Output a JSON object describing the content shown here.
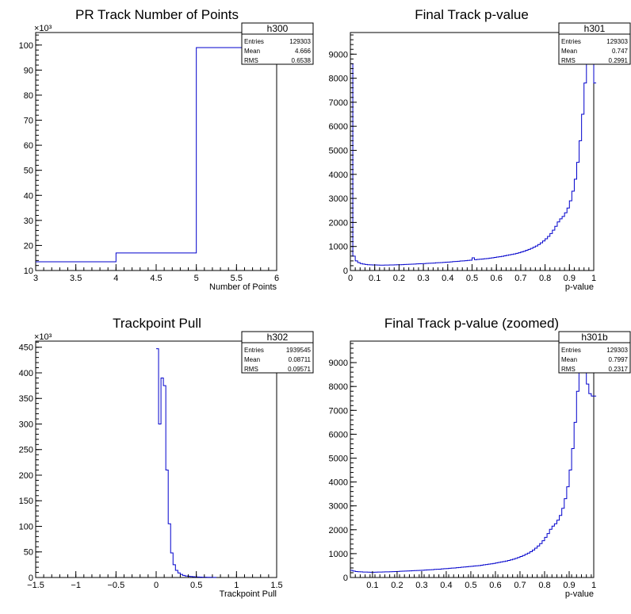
{
  "chart_data": [
    {
      "type": "histogram",
      "title": "PR Track Number of Points",
      "xlabel": "Number of Points",
      "ylabel": "",
      "xlim": [
        3,
        6
      ],
      "ylim": [
        10,
        105
      ],
      "y_multiplier_label": "×10³",
      "xticks": [
        "3",
        "3.5",
        "4",
        "4.5",
        "5",
        "5.5",
        "6"
      ],
      "yticks": [
        "10",
        "20",
        "30",
        "40",
        "50",
        "60",
        "70",
        "80",
        "90",
        "100"
      ],
      "bin_edges": [
        3,
        4,
        5,
        6
      ],
      "values": [
        13.5,
        17,
        99
      ],
      "stats": {
        "name": "h300",
        "entries_label": "Entries",
        "entries": "129303",
        "mean_label": "Mean",
        "mean": "4.666",
        "rms_label": "RMS",
        "rms": "0.6538"
      },
      "line_color": "#0000cc",
      "grid": false
    },
    {
      "type": "histogram",
      "title": "Final Track p-value",
      "xlabel": "p-value",
      "ylabel": "",
      "xlim": [
        0,
        1
      ],
      "ylim": [
        0,
        9900
      ],
      "xticks": [
        "0",
        "0.1",
        "0.2",
        "0.3",
        "0.4",
        "0.5",
        "0.6",
        "0.7",
        "0.8",
        "0.9",
        "1"
      ],
      "yticks": [
        "0",
        "1000",
        "2000",
        "3000",
        "4000",
        "5000",
        "6000",
        "7000",
        "8000",
        "9000"
      ],
      "bin_width": 0.01,
      "values": [
        8600,
        600,
        400,
        330,
        290,
        270,
        250,
        240,
        235,
        230,
        230,
        225,
        222,
        222,
        225,
        228,
        230,
        232,
        235,
        238,
        240,
        245,
        250,
        255,
        260,
        265,
        270,
        275,
        280,
        285,
        290,
        295,
        300,
        305,
        310,
        320,
        325,
        330,
        340,
        345,
        350,
        360,
        370,
        375,
        385,
        395,
        400,
        410,
        420,
        430,
        530,
        450,
        460,
        470,
        480,
        490,
        500,
        515,
        530,
        545,
        560,
        575,
        590,
        610,
        630,
        650,
        670,
        690,
        715,
        740,
        770,
        800,
        840,
        880,
        920,
        970,
        1020,
        1080,
        1150,
        1230,
        1320,
        1420,
        1540,
        1680,
        1840,
        2020,
        2150,
        2250,
        2400,
        2600,
        2900,
        3300,
        3800,
        4500,
        5400,
        6500,
        7800,
        8900,
        9300,
        9100,
        7800
      ],
      "stats": {
        "name": "h301",
        "entries_label": "Entries",
        "entries": "129303",
        "mean_label": "Mean",
        "mean": "0.747",
        "rms_label": "RMS",
        "rms": "0.2991"
      },
      "line_color": "#0000cc",
      "grid": false
    },
    {
      "type": "histogram",
      "title": "Trackpoint Pull",
      "xlabel": "Trackpoint Pull",
      "ylabel": "",
      "xlim": [
        -1.5,
        1.5
      ],
      "ylim": [
        0,
        462
      ],
      "y_multiplier_label": "×10³",
      "xticks": [
        "−1.5",
        "−1",
        "−0.5",
        "0",
        "0.5",
        "1",
        "1.5"
      ],
      "yticks": [
        "0",
        "50",
        "100",
        "150",
        "200",
        "250",
        "300",
        "350",
        "400",
        "450"
      ],
      "bin_edges": [
        0,
        0.03,
        0.06,
        0.09,
        0.12,
        0.15,
        0.18,
        0.21,
        0.24,
        0.27,
        0.3,
        0.33,
        0.36,
        0.39,
        0.42,
        0.45,
        0.48,
        0.51,
        0.54,
        0.57,
        0.6,
        0.63,
        0.66,
        0.69,
        0.72,
        0.75
      ],
      "values": [
        447,
        300,
        390,
        375,
        210,
        105,
        48,
        25,
        14,
        9,
        6,
        4,
        3,
        2.5,
        2,
        1.5,
        1.2,
        1,
        0.8,
        0.6,
        0.5,
        0.4,
        0.3,
        0.2,
        0.1
      ],
      "stats": {
        "name": "h302",
        "entries_label": "Entries",
        "entries": "1939545",
        "mean_label": "Mean",
        "mean": "0.08711",
        "rms_label": "RMS",
        "rms": "0.09571"
      },
      "line_color": "#0000cc",
      "grid": false
    },
    {
      "type": "histogram",
      "title": "Final Track p-value (zoomed)",
      "xlabel": "p-value",
      "ylabel": "",
      "xlim": [
        0.01,
        1
      ],
      "ylim": [
        0,
        9900
      ],
      "xticks": [
        "0.1",
        "0.2",
        "0.3",
        "0.4",
        "0.5",
        "0.6",
        "0.7",
        "0.8",
        "0.9",
        "1"
      ],
      "yticks": [
        "0",
        "1000",
        "2000",
        "3000",
        "4000",
        "5000",
        "6000",
        "7000",
        "8000",
        "9000"
      ],
      "bin_width": 0.01,
      "values": [
        300,
        270,
        250,
        240,
        235,
        230,
        230,
        225,
        222,
        222,
        225,
        228,
        230,
        232,
        235,
        238,
        240,
        245,
        250,
        255,
        260,
        265,
        270,
        275,
        280,
        285,
        290,
        295,
        300,
        305,
        310,
        320,
        325,
        330,
        340,
        345,
        350,
        360,
        370,
        375,
        385,
        395,
        400,
        410,
        420,
        430,
        440,
        450,
        460,
        470,
        480,
        490,
        500,
        515,
        530,
        545,
        560,
        575,
        590,
        610,
        630,
        650,
        670,
        690,
        715,
        740,
        770,
        800,
        840,
        880,
        920,
        970,
        1020,
        1080,
        1150,
        1230,
        1320,
        1420,
        1540,
        1680,
        1840,
        2020,
        2150,
        2250,
        2400,
        2600,
        2900,
        3300,
        3800,
        4500,
        5400,
        6500,
        7800,
        8900,
        9300,
        9100,
        8100,
        7700,
        7600,
        7600
      ],
      "stats": {
        "name": "h301b",
        "entries_label": "Entries",
        "entries": "129303",
        "mean_label": "Mean",
        "mean": "0.7997",
        "rms_label": "RMS",
        "rms": "0.2317"
      },
      "line_color": "#0000cc",
      "grid": false
    }
  ]
}
